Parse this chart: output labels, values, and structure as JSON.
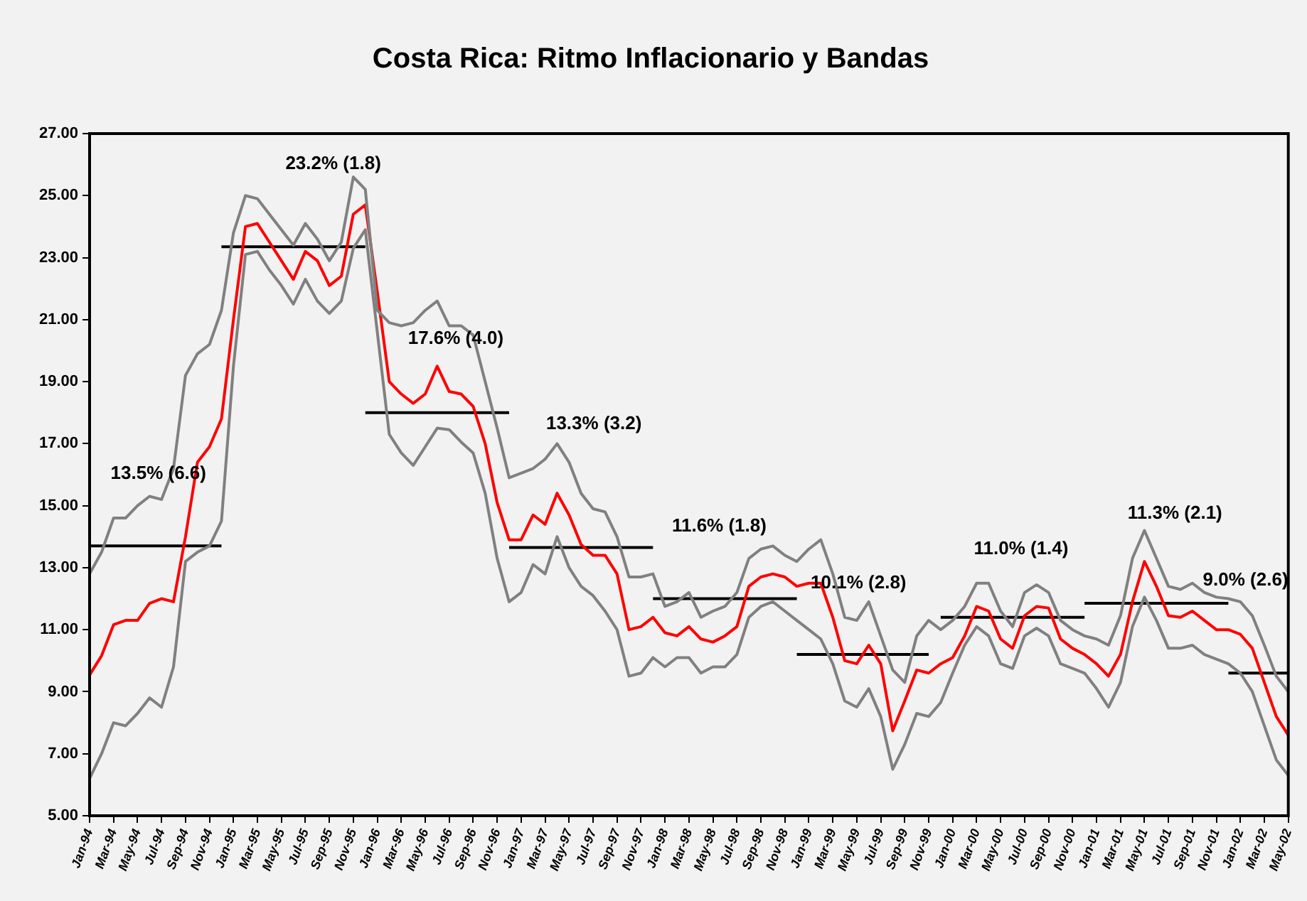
{
  "chart_data": {
    "type": "line",
    "title": "Costa Rica: Ritmo Inflacionario y Bandas",
    "x": [
      "1994-01",
      "1994-02",
      "1994-03",
      "1994-04",
      "1994-05",
      "1994-06",
      "1994-07",
      "1994-08",
      "1994-09",
      "1994-10",
      "1994-11",
      "1994-12",
      "1995-01",
      "1995-02",
      "1995-03",
      "1995-04",
      "1995-05",
      "1995-06",
      "1995-07",
      "1995-08",
      "1995-09",
      "1995-10",
      "1995-11",
      "1995-12",
      "1996-01",
      "1996-02",
      "1996-03",
      "1996-04",
      "1996-05",
      "1996-06",
      "1996-07",
      "1996-08",
      "1996-09",
      "1996-10",
      "1996-11",
      "1996-12",
      "1997-01",
      "1997-02",
      "1997-03",
      "1997-04",
      "1997-05",
      "1997-06",
      "1997-07",
      "1997-08",
      "1997-09",
      "1997-10",
      "1997-11",
      "1997-12",
      "1998-01",
      "1998-02",
      "1998-03",
      "1998-04",
      "1998-05",
      "1998-06",
      "1998-07",
      "1998-08",
      "1998-09",
      "1998-10",
      "1998-11",
      "1998-12",
      "1999-01",
      "1999-02",
      "1999-03",
      "1999-04",
      "1999-05",
      "1999-06",
      "1999-07",
      "1999-08",
      "1999-09",
      "1999-10",
      "1999-11",
      "1999-12",
      "2000-01",
      "2000-02",
      "2000-03",
      "2000-04",
      "2000-05",
      "2000-06",
      "2000-07",
      "2000-08",
      "2000-09",
      "2000-10",
      "2000-11",
      "2000-12",
      "2001-01",
      "2001-02",
      "2001-03",
      "2001-04",
      "2001-05",
      "2001-06",
      "2001-07",
      "2001-08",
      "2001-09",
      "2001-10",
      "2001-11",
      "2001-12",
      "2002-01",
      "2002-02",
      "2002-03",
      "2002-04",
      "2002-05"
    ],
    "xlim": [
      "1994-01",
      "2002-05"
    ],
    "xticks": [
      {
        "value": "1994-01",
        "label": "Jan-94"
      },
      {
        "value": "1994-03",
        "label": "Mar-94"
      },
      {
        "value": "1994-05",
        "label": "May-94"
      },
      {
        "value": "1994-07",
        "label": "Jul-94"
      },
      {
        "value": "1994-09",
        "label": "Sep-94"
      },
      {
        "value": "1994-11",
        "label": "Nov-94"
      },
      {
        "value": "1995-01",
        "label": "Jan-95"
      },
      {
        "value": "1995-03",
        "label": "Mar-95"
      },
      {
        "value": "1995-05",
        "label": "May-95"
      },
      {
        "value": "1995-07",
        "label": "Jul-95"
      },
      {
        "value": "1995-09",
        "label": "Sep-95"
      },
      {
        "value": "1995-11",
        "label": "Nov-95"
      },
      {
        "value": "1996-01",
        "label": "Jan-96"
      },
      {
        "value": "1996-03",
        "label": "Mar-96"
      },
      {
        "value": "1996-05",
        "label": "May-96"
      },
      {
        "value": "1996-07",
        "label": "Jul-96"
      },
      {
        "value": "1996-09",
        "label": "Sep-96"
      },
      {
        "value": "1996-11",
        "label": "Nov-96"
      },
      {
        "value": "1997-01",
        "label": "Jan-97"
      },
      {
        "value": "1997-03",
        "label": "Mar-97"
      },
      {
        "value": "1997-05",
        "label": "May-97"
      },
      {
        "value": "1997-07",
        "label": "Jul-97"
      },
      {
        "value": "1997-09",
        "label": "Sep-97"
      },
      {
        "value": "1997-11",
        "label": "Nov-97"
      },
      {
        "value": "1998-01",
        "label": "Jan-98"
      },
      {
        "value": "1998-03",
        "label": "Mar-98"
      },
      {
        "value": "1998-05",
        "label": "May-98"
      },
      {
        "value": "1998-07",
        "label": "Jul-98"
      },
      {
        "value": "1998-09",
        "label": "Sep-98"
      },
      {
        "value": "1998-11",
        "label": "Nov-98"
      },
      {
        "value": "1999-01",
        "label": "Jan-99"
      },
      {
        "value": "1999-03",
        "label": "Mar-99"
      },
      {
        "value": "1999-05",
        "label": "May-99"
      },
      {
        "value": "1999-07",
        "label": "Jul-99"
      },
      {
        "value": "1999-09",
        "label": "Sep-99"
      },
      {
        "value": "1999-11",
        "label": "Nov-99"
      },
      {
        "value": "2000-01",
        "label": "Jan-00"
      },
      {
        "value": "2000-03",
        "label": "Mar-00"
      },
      {
        "value": "2000-05",
        "label": "May-00"
      },
      {
        "value": "2000-07",
        "label": "Jul-00"
      },
      {
        "value": "2000-09",
        "label": "Sep-00"
      },
      {
        "value": "2000-11",
        "label": "Nov-00"
      },
      {
        "value": "2001-01",
        "label": "Jan-01"
      },
      {
        "value": "2001-03",
        "label": "Mar-01"
      },
      {
        "value": "2001-05",
        "label": "May-01"
      },
      {
        "value": "2001-07",
        "label": "Jul-01"
      },
      {
        "value": "2001-09",
        "label": "Sep-01"
      },
      {
        "value": "2001-11",
        "label": "Nov-01"
      },
      {
        "value": "2002-01",
        "label": "Jan-02"
      },
      {
        "value": "2002-03",
        "label": "Mar-02"
      },
      {
        "value": "2002-05",
        "label": "May-02"
      }
    ],
    "ylim": [
      5,
      27
    ],
    "yticks": [
      {
        "value": 5,
        "label": "5.00"
      },
      {
        "value": 7,
        "label": "7.00"
      },
      {
        "value": 9,
        "label": "9.00"
      },
      {
        "value": 11,
        "label": "11.00"
      },
      {
        "value": 13,
        "label": "13.00"
      },
      {
        "value": 15,
        "label": "15.00"
      },
      {
        "value": 17,
        "label": "17.00"
      },
      {
        "value": 19,
        "label": "19.00"
      },
      {
        "value": 21,
        "label": "21.00"
      },
      {
        "value": 23,
        "label": "23.00"
      },
      {
        "value": 25,
        "label": "25.00"
      },
      {
        "value": 27,
        "label": "27.00"
      }
    ],
    "grid": false,
    "legend": false,
    "marker": "none",
    "line_style": "solid",
    "series": [
      {
        "color": "#808080",
        "values": [
          12.8,
          13.5,
          14.6,
          14.6,
          15.0,
          15.3,
          15.2,
          16.2,
          19.2,
          19.9,
          20.2,
          21.3,
          23.8,
          25.0,
          24.9,
          24.4,
          23.9,
          23.4,
          24.1,
          23.6,
          22.9,
          23.5,
          25.6,
          25.2,
          21.3,
          20.9,
          20.8,
          20.9,
          21.3,
          21.6,
          20.8,
          20.8,
          20.5,
          19.0,
          17.5,
          15.9,
          16.05,
          16.2,
          16.5,
          17.0,
          16.4,
          15.4,
          14.9,
          14.8,
          14.0,
          12.7,
          12.7,
          12.8,
          11.75,
          11.9,
          12.2,
          11.4,
          11.6,
          11.75,
          12.2,
          13.3,
          13.6,
          13.7,
          13.4,
          13.2,
          13.6,
          13.9,
          12.8,
          11.4,
          11.3,
          11.9,
          10.8,
          9.7,
          9.3,
          10.8,
          11.3,
          11.0,
          11.3,
          11.75,
          12.5,
          12.5,
          11.6,
          11.1,
          12.2,
          12.45,
          12.2,
          11.3,
          11.0,
          10.8,
          10.7,
          10.5,
          11.45,
          13.3,
          14.2,
          13.3,
          12.4,
          12.3,
          12.5,
          12.2,
          12.05,
          12.0,
          11.9,
          11.45,
          10.5,
          9.5,
          9.0
        ]
      },
      {
        "color": "#808080",
        "values": [
          6.2,
          7.0,
          8.0,
          7.9,
          8.3,
          8.8,
          8.5,
          9.8,
          13.2,
          13.5,
          13.7,
          14.5,
          19.5,
          23.1,
          23.2,
          22.6,
          22.1,
          21.5,
          22.3,
          21.6,
          21.2,
          21.6,
          23.3,
          23.9,
          20.6,
          17.3,
          16.7,
          16.3,
          16.9,
          17.5,
          17.45,
          17.05,
          16.7,
          15.4,
          13.3,
          11.9,
          12.2,
          13.1,
          12.8,
          14.0,
          13.0,
          12.4,
          12.1,
          11.6,
          11.0,
          9.5,
          9.6,
          10.1,
          9.8,
          10.1,
          10.1,
          9.6,
          9.8,
          9.8,
          10.2,
          11.4,
          11.75,
          11.9,
          11.6,
          11.3,
          11.0,
          10.7,
          9.9,
          8.7,
          8.5,
          9.1,
          8.2,
          6.5,
          7.3,
          8.3,
          8.2,
          8.65,
          9.6,
          10.5,
          11.1,
          10.8,
          9.9,
          9.75,
          10.8,
          11.05,
          10.8,
          9.9,
          9.75,
          9.6,
          9.1,
          8.5,
          9.3,
          11.1,
          12.05,
          11.3,
          10.4,
          10.4,
          10.5,
          10.2,
          10.05,
          9.9,
          9.6,
          9.0,
          7.9,
          6.8,
          6.3
        ]
      },
      {
        "color": "#ff0000",
        "values": [
          9.54,
          10.16,
          11.16,
          11.3,
          11.3,
          11.85,
          12.0,
          11.9,
          14.0,
          16.4,
          16.9,
          17.8,
          21.0,
          24.0,
          24.1,
          23.5,
          22.9,
          22.3,
          23.2,
          22.9,
          22.1,
          22.4,
          24.4,
          24.7,
          21.9,
          19.0,
          18.6,
          18.3,
          18.6,
          19.5,
          18.68,
          18.6,
          18.2,
          17.0,
          15.1,
          13.9,
          13.9,
          14.7,
          14.4,
          15.4,
          14.7,
          13.75,
          13.4,
          13.4,
          12.8,
          11.0,
          11.1,
          11.4,
          10.9,
          10.8,
          11.1,
          10.7,
          10.6,
          10.8,
          11.1,
          12.4,
          12.7,
          12.8,
          12.7,
          12.4,
          12.5,
          12.5,
          11.4,
          10.0,
          9.9,
          10.5,
          9.9,
          7.74,
          8.7,
          9.7,
          9.6,
          9.9,
          10.1,
          10.8,
          11.75,
          11.6,
          10.7,
          10.4,
          11.45,
          11.75,
          11.7,
          10.7,
          10.4,
          10.2,
          9.9,
          9.5,
          10.2,
          11.9,
          13.2,
          12.4,
          11.45,
          11.4,
          11.6,
          11.3,
          11.0,
          11.0,
          10.85,
          10.4,
          9.3,
          8.2,
          7.6
        ]
      },
      {
        "type": "line",
        "color": "#000000",
        "x": [
          "1994-01",
          "1994-12"
        ],
        "values": [
          13.7,
          13.7
        ]
      },
      {
        "type": "line",
        "color": "#000000",
        "x": [
          "1994-12",
          "1995-12"
        ],
        "values": [
          23.35,
          23.35
        ]
      },
      {
        "type": "line",
        "color": "#000000",
        "x": [
          "1995-12",
          "1996-12"
        ],
        "values": [
          18.0,
          18.0
        ]
      },
      {
        "type": "line",
        "color": "#000000",
        "x": [
          "1996-12",
          "1997-12"
        ],
        "values": [
          13.65,
          13.65
        ]
      },
      {
        "type": "line",
        "color": "#000000",
        "x": [
          "1997-12",
          "1998-12"
        ],
        "values": [
          12.0,
          12.0
        ]
      },
      {
        "type": "line",
        "color": "#000000",
        "x": [
          "1998-12",
          "1999-11"
        ],
        "values": [
          10.2,
          10.2
        ]
      },
      {
        "type": "line",
        "color": "#000000",
        "x": [
          "1999-12",
          "2000-12"
        ],
        "values": [
          11.4,
          11.4
        ]
      },
      {
        "type": "line",
        "color": "#000000",
        "x": [
          "2000-12",
          "2001-12"
        ],
        "values": [
          11.85,
          11.85
        ]
      },
      {
        "type": "line",
        "color": "#000000",
        "x": [
          "2001-12",
          "2002-05"
        ],
        "values": [
          9.6,
          9.6
        ]
      }
    ],
    "annotations": [
      "13.5% (6.6)",
      "23.2% (1.8)",
      "17.6% (4.0)",
      "13.3% (3.2)",
      "11.6% (1.8)",
      "10.1% (2.8)",
      "11.0% (1.4)",
      "11.3% (2.1)",
      "9.0% (2.6)"
    ]
  }
}
